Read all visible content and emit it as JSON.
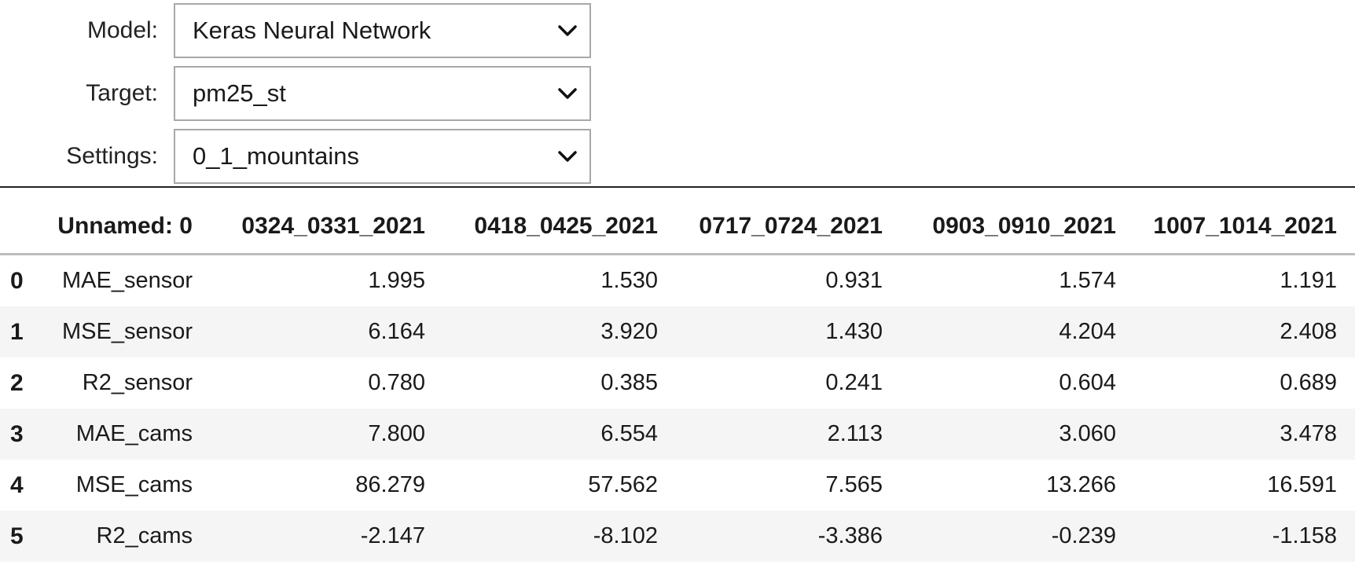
{
  "controls": {
    "model": {
      "label": "Model:",
      "value": "Keras Neural Network"
    },
    "target": {
      "label": "Target:",
      "value": "pm25_st"
    },
    "settings": {
      "label": "Settings:",
      "value": "0_1_mountains"
    }
  },
  "table": {
    "columns": [
      "",
      "Unnamed: 0",
      "0324_0331_2021",
      "0418_0425_2021",
      "0717_0724_2021",
      "0903_0910_2021",
      "1007_1014_2021"
    ],
    "rows": [
      {
        "index": "0",
        "name": "MAE_sensor",
        "values": [
          "1.995",
          "1.530",
          "0.931",
          "1.574",
          "1.191"
        ]
      },
      {
        "index": "1",
        "name": "MSE_sensor",
        "values": [
          "6.164",
          "3.920",
          "1.430",
          "4.204",
          "2.408"
        ]
      },
      {
        "index": "2",
        "name": "R2_sensor",
        "values": [
          "0.780",
          "0.385",
          "0.241",
          "0.604",
          "0.689"
        ]
      },
      {
        "index": "3",
        "name": "MAE_cams",
        "values": [
          "7.800",
          "6.554",
          "2.113",
          "3.060",
          "3.478"
        ]
      },
      {
        "index": "4",
        "name": "MSE_cams",
        "values": [
          "86.279",
          "57.562",
          "7.565",
          "13.266",
          "16.591"
        ]
      },
      {
        "index": "5",
        "name": "R2_cams",
        "values": [
          "-2.147",
          "-8.102",
          "-3.386",
          "-0.239",
          "-1.158"
        ]
      }
    ]
  },
  "colors": {
    "row_stripe": "#f5f5f5",
    "select_border": "#a8a8a8",
    "divider": "#222222"
  },
  "icons": {
    "dropdown": "chevron-down-icon"
  }
}
